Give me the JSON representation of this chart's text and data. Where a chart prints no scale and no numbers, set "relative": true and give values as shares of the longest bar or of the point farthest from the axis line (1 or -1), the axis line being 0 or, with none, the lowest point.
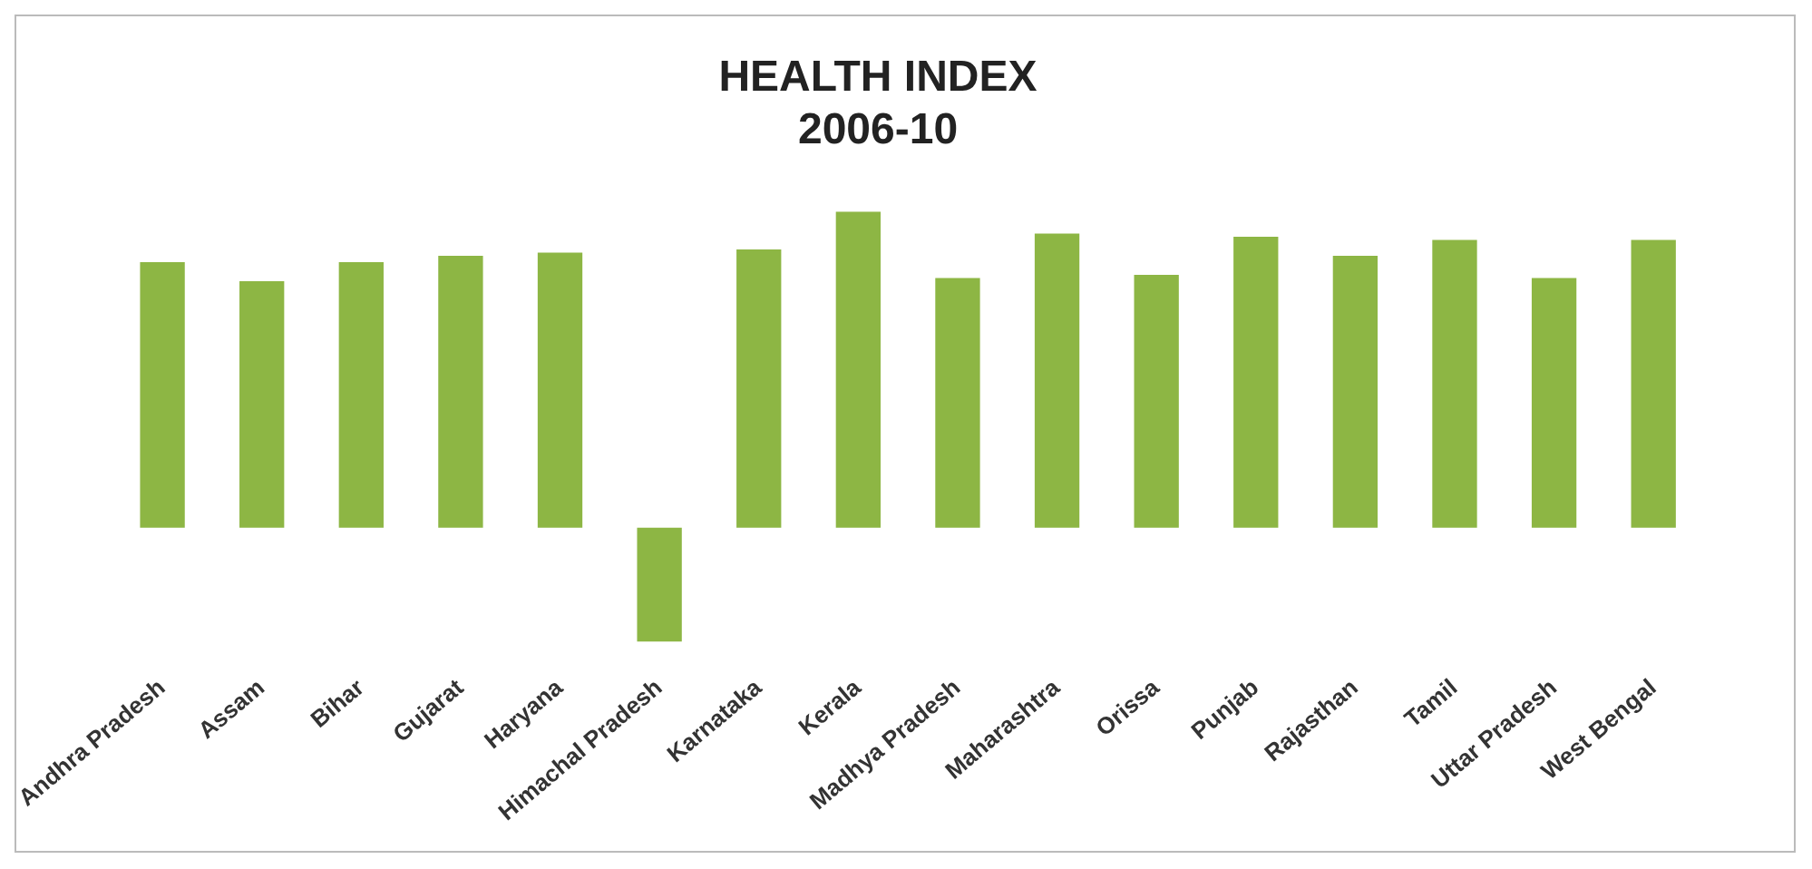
{
  "chart_data": {
    "type": "bar",
    "title": "HEALTH INDEX\n2006-10",
    "relative": true,
    "categories": [
      "Andhra Pradesh",
      "Assam",
      "Bihar",
      "Gujarat",
      "Haryana",
      "Himachal Pradesh",
      "Karnataka",
      "Kerala",
      "Madhya Pradesh",
      "Maharashtra",
      "Orissa",
      "Punjab",
      "Rajasthan",
      "Tamil",
      "Uttar Pradesh",
      "West Bengal"
    ],
    "values": [
      0.84,
      0.78,
      0.84,
      0.86,
      0.87,
      -0.36,
      0.88,
      1,
      0.79,
      0.93,
      0.8,
      0.92,
      0.86,
      0.91,
      0.79,
      0.91
    ],
    "color": "#8db644",
    "grid": false,
    "legend": false
  }
}
